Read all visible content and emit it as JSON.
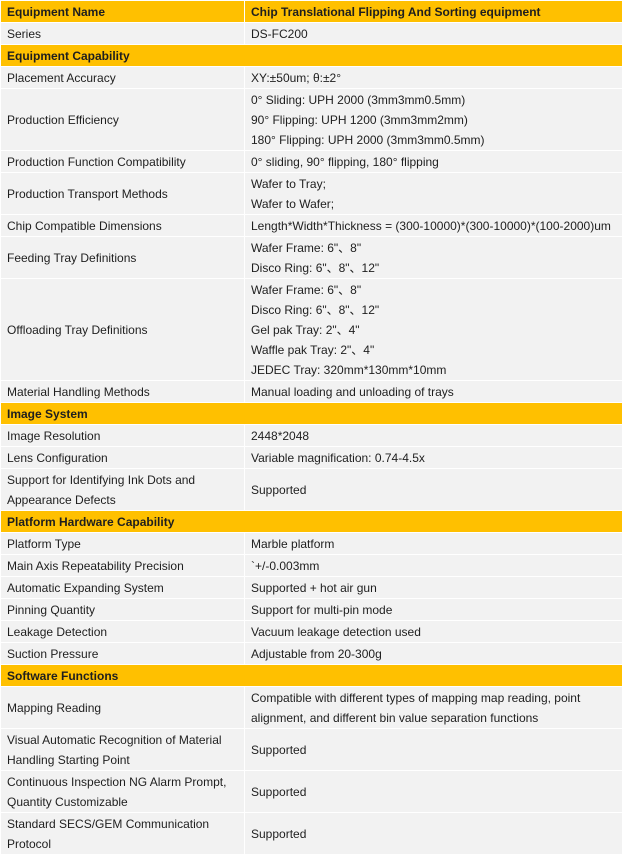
{
  "header": {
    "label": "Equipment Name",
    "value": "Chip Translational Flipping And Sorting equipment"
  },
  "accent_color": "#ffc000",
  "rows": [
    {
      "label": "Series",
      "lines": [
        "DS-FC200"
      ]
    },
    {
      "section": "Equipment Capability"
    },
    {
      "label": "Placement Accuracy",
      "lines": [
        "XY:±50um;  θ:±2°"
      ]
    },
    {
      "label": "Production Efficiency",
      "lines": [
        "0° Sliding: UPH 2000 (3mm3mm0.5mm)",
        "90° Flipping: UPH 1200 (3mm3mm2mm)",
        "180° Flipping: UPH 2000 (3mm3mm0.5mm)"
      ]
    },
    {
      "label": "Production Function Compatibility",
      "lines": [
        "0° sliding, 90° flipping, 180° flipping"
      ]
    },
    {
      "label": "Production Transport Methods",
      "lines": [
        "Wafer to Tray;",
        "Wafer to Wafer;"
      ]
    },
    {
      "label": "Chip Compatible Dimensions",
      "lines": [
        "Length*Width*Thickness = (300-10000)*(300-10000)*(100-2000)um"
      ]
    },
    {
      "label": "Feeding Tray Definitions",
      "lines": [
        "Wafer Frame: 6\"、8\"",
        "Disco Ring: 6\"、8\"、12\""
      ]
    },
    {
      "label": "Offloading Tray Definitions",
      "lines": [
        "Wafer Frame: 6\"、8\"",
        "Disco Ring: 6\"、8\"、12\"",
        "Gel pak Tray: 2\"、4\"",
        "Waffle pak Tray: 2\"、4\"",
        "JEDEC Tray: 320mm*130mm*10mm"
      ]
    },
    {
      "label": "Material Handling Methods",
      "lines": [
        "Manual loading and unloading of trays"
      ]
    },
    {
      "section": "Image System"
    },
    {
      "label": "Image Resolution",
      "lines": [
        "2448*2048"
      ]
    },
    {
      "label": "Lens Configuration",
      "lines": [
        "Variable magnification: 0.74-4.5x"
      ]
    },
    {
      "label": "Support for Identifying Ink Dots and Appearance Defects",
      "lines": [
        "Supported"
      ]
    },
    {
      "section": "Platform Hardware Capability"
    },
    {
      "label": "Platform Type",
      "lines": [
        "Marble platform"
      ]
    },
    {
      "label": "Main Axis Repeatability Precision",
      "lines": [
        "`+/-0.003mm"
      ]
    },
    {
      "label": "Automatic Expanding System",
      "lines": [
        "Supported + hot air gun"
      ]
    },
    {
      "label": "Pinning Quantity",
      "lines": [
        "Support for multi-pin mode"
      ]
    },
    {
      "label": "Leakage Detection",
      "lines": [
        "Vacuum leakage detection used"
      ]
    },
    {
      "label": "Suction Pressure",
      "lines": [
        "Adjustable from 20-300g"
      ]
    },
    {
      "section": "Software Functions"
    },
    {
      "label": "Mapping Reading",
      "lines": [
        "Compatible with different types of mapping map reading, point alignment, and different bin value separation functions"
      ]
    },
    {
      "label": "Visual Automatic Recognition of Material Handling Starting Point",
      "lines": [
        "Supported"
      ]
    },
    {
      "label": "Continuous Inspection NG Alarm Prompt, Quantity Customizable",
      "lines": [
        "Supported"
      ]
    },
    {
      "label": "Standard SECS/GEM Communication Protocol",
      "lines": [
        "Supported"
      ]
    }
  ]
}
